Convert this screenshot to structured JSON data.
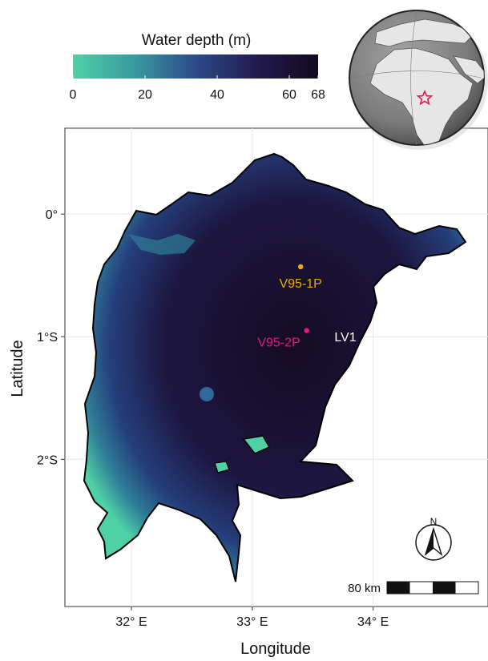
{
  "legend": {
    "title": "Water depth (m)",
    "ticks": [
      0,
      20,
      40,
      60,
      68
    ],
    "min": 0,
    "max": 68,
    "colors": [
      "#4fd1a5",
      "#3b6ea0",
      "#2a2a6a",
      "#1c1538",
      "#120a1e"
    ]
  },
  "map": {
    "xlabel": "Longitude",
    "ylabel": "Latitude",
    "xticks": [
      {
        "value": 32,
        "label": "32° E"
      },
      {
        "value": 33,
        "label": "33° E"
      },
      {
        "value": 34,
        "label": "34° E"
      }
    ],
    "yticks": [
      {
        "value": 0,
        "label": "0°"
      },
      {
        "value": -1,
        "label": "1°S"
      },
      {
        "value": -2,
        "label": "2°S"
      }
    ],
    "xlim": [
      31.45,
      34.95
    ],
    "ylim": [
      -3.2,
      0.7
    ],
    "grid": true
  },
  "sites": [
    {
      "name": "V95-1P",
      "lon": 33.4,
      "lat": -0.43,
      "color": "#f2a900"
    },
    {
      "name": "V95-2P",
      "lon": 33.45,
      "lat": -0.95,
      "color": "#e6197a"
    },
    {
      "name": "LV1",
      "lon": 33.9,
      "lat": -1.09,
      "color": "#ffffff"
    }
  ],
  "scalebar": {
    "label": "80 km"
  },
  "north_arrow": {
    "label": "N"
  },
  "locator_globe": {
    "marker": "star",
    "marker_color": "#e8194a"
  },
  "colors": {
    "shallow": "#4fd1a5",
    "deep": "#120a1e",
    "shoreline": "#000000",
    "grid": "#e6e6e6"
  }
}
